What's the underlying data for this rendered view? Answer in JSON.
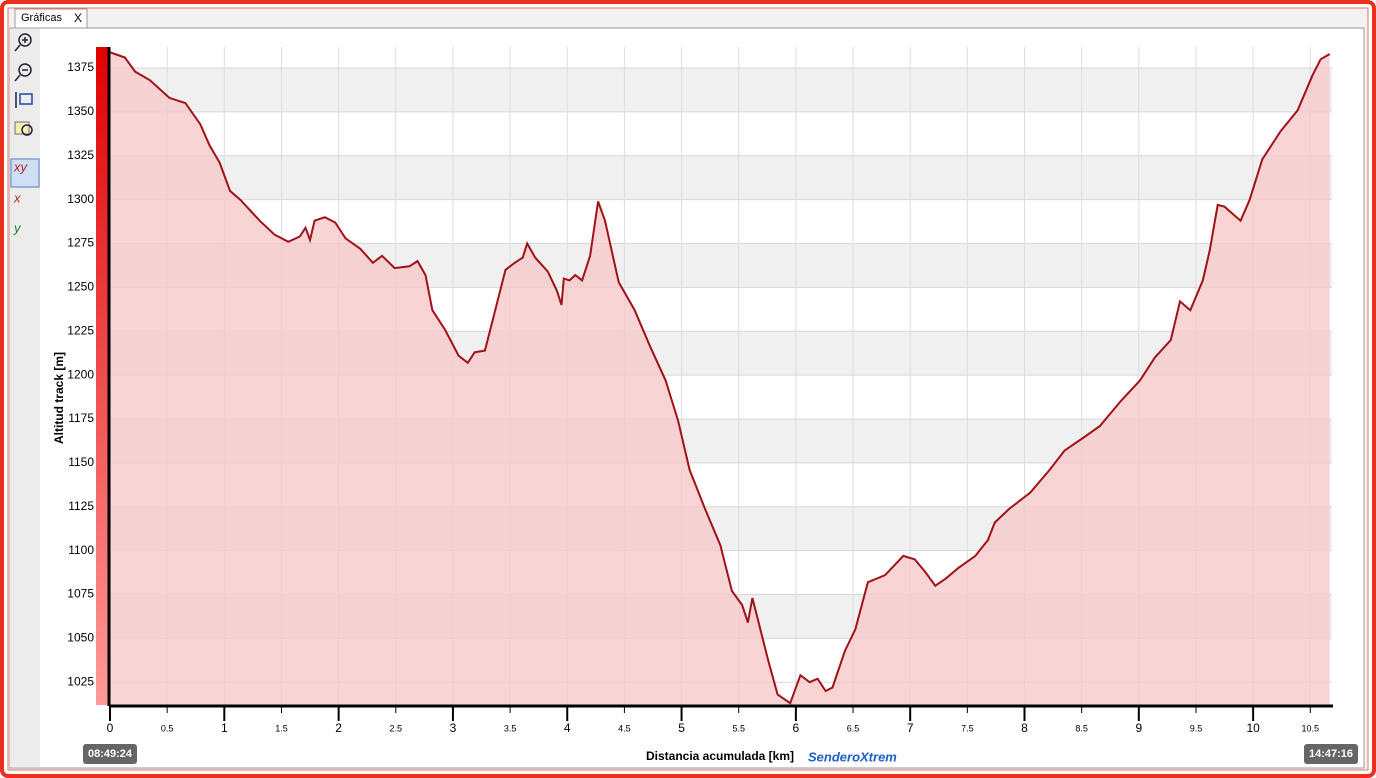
{
  "ui": {
    "tab": "Gráficas",
    "close": "X",
    "brand": "SenderoXtrem"
  },
  "chart_data": {
    "type": "area",
    "y_label": "Altitud track [m]",
    "x_label": "Distancia acumulada [km]",
    "time_start": "08:49:24",
    "time_end": "14:47:16",
    "x": [
      0,
      0.13,
      0.22,
      0.35,
      0.52,
      0.66,
      0.79,
      0.87,
      0.96,
      1.05,
      1.14,
      1.31,
      1.44,
      1.56,
      1.66,
      1.71,
      1.75,
      1.79,
      1.88,
      1.97,
      2.06,
      2.19,
      2.3,
      2.38,
      2.49,
      2.62,
      2.69,
      2.76,
      2.82,
      2.93,
      3.05,
      3.13,
      3.19,
      3.28,
      3.37,
      3.46,
      3.54,
      3.61,
      3.65,
      3.72,
      3.83,
      3.91,
      3.95,
      3.97,
      4.02,
      4.07,
      4.13,
      4.2,
      4.27,
      4.33,
      4.45,
      4.59,
      4.72,
      4.86,
      4.97,
      5.07,
      5.21,
      5.34,
      5.44,
      5.53,
      5.58,
      5.62,
      5.67,
      5.76,
      5.84,
      5.95,
      6.04,
      6.12,
      6.19,
      6.26,
      6.32,
      6.43,
      6.52,
      6.63,
      6.78,
      6.94,
      7.04,
      7.13,
      7.22,
      7.31,
      7.42,
      7.57,
      7.68,
      7.74,
      7.87,
      8.05,
      8.22,
      8.35,
      8.53,
      8.66,
      8.84,
      9.01,
      9.14,
      9.28,
      9.36,
      9.45,
      9.56,
      9.62,
      9.69,
      9.75,
      9.89,
      9.97,
      10.08,
      10.24,
      10.39,
      10.52,
      10.59,
      10.67
    ],
    "values": [
      1384,
      1381,
      1373,
      1368,
      1358,
      1355,
      1343,
      1331,
      1321,
      1305,
      1300,
      1288,
      1280,
      1276,
      1279,
      1284,
      1277,
      1288,
      1290,
      1287,
      1278,
      1272,
      1264,
      1268,
      1261,
      1262,
      1265,
      1257,
      1237,
      1226,
      1211,
      1207,
      1213,
      1214,
      1237,
      1260,
      1264,
      1267,
      1275,
      1267,
      1259,
      1248,
      1240,
      1255,
      1254,
      1257,
      1254,
      1268,
      1299,
      1288,
      1253,
      1237,
      1217,
      1197,
      1174,
      1146,
      1123,
      1103,
      1077,
      1069,
      1059,
      1073,
      1060,
      1037,
      1018,
      1013,
      1029,
      1025,
      1027,
      1020,
      1022,
      1043,
      1055,
      1082,
      1086,
      1097,
      1095,
      1088,
      1080,
      1084,
      1090,
      1097,
      1106,
      1116,
      1124,
      1133,
      1146,
      1157,
      1165,
      1171,
      1185,
      1197,
      1210,
      1220,
      1242,
      1237,
      1254,
      1271,
      1297,
      1296,
      1288,
      1300,
      1323,
      1339,
      1351,
      1371,
      1380,
      1383
    ],
    "color": "#a01218",
    "fill": "#f7c9c9",
    "xlim": [
      0,
      10.69
    ],
    "ylim": [
      1012,
      1387
    ],
    "xticks": [
      0,
      0.5,
      1,
      1.5,
      2,
      2.5,
      3,
      3.5,
      4,
      4.5,
      5,
      5.5,
      6,
      6.5,
      7,
      7.5,
      8,
      8.5,
      9,
      9.5,
      10,
      10.5
    ],
    "yticks": [
      1025,
      1050,
      1075,
      1100,
      1125,
      1150,
      1175,
      1200,
      1225,
      1250,
      1275,
      1300,
      1325,
      1350,
      1375
    ],
    "grid": true
  }
}
